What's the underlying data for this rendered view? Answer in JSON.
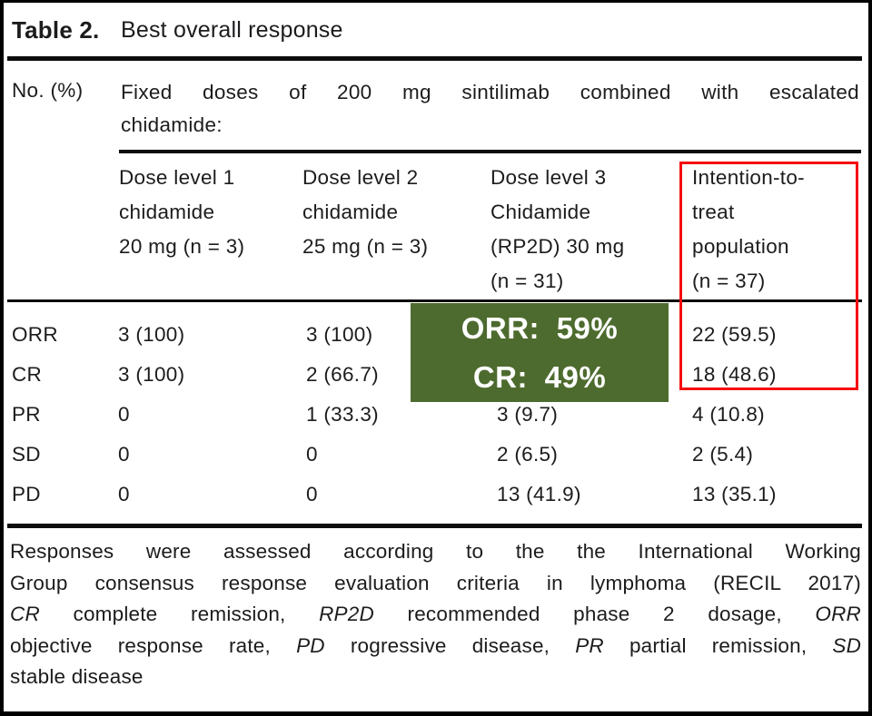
{
  "title": {
    "label": "Table 2.",
    "text": "Best overall response"
  },
  "header": {
    "row_unit": "No. (%)",
    "span_note_lines": [
      "Fixed doses of 200 mg sintilimab combined with escalated",
      "chidamide:"
    ],
    "columns": [
      {
        "id": "dose-level-1",
        "lines": [
          "Dose level 1",
          "chidamide",
          "20 mg (n = 3)"
        ]
      },
      {
        "id": "dose-level-2",
        "lines": [
          "Dose level 2",
          "chidamide",
          "25 mg (n = 3)"
        ]
      },
      {
        "id": "dose-level-3",
        "lines": [
          "Dose level 3",
          "Chidamide",
          "(RP2D) 30 mg",
          "(n = 31)"
        ]
      },
      {
        "id": "intention-to-treat",
        "lines": [
          "Intention-to-",
          "treat",
          "population",
          "(n = 37)"
        ],
        "highlighted": true
      }
    ]
  },
  "rows": [
    {
      "label": "ORR",
      "values": [
        "3 (100)",
        "3 (100)",
        "",
        "22 (59.5)"
      ]
    },
    {
      "label": "CR",
      "values": [
        "3 (100)",
        "2 (66.7)",
        "",
        "18 (48.6)"
      ]
    },
    {
      "label": "PR",
      "values": [
        "0",
        "1 (33.3)",
        "3 (9.7)",
        "4 (10.8)"
      ]
    },
    {
      "label": "SD",
      "values": [
        "0",
        "0",
        "2 (6.5)",
        "2 (5.4)"
      ]
    },
    {
      "label": "PD",
      "values": [
        "0",
        "0",
        "13 (41.9)",
        "13 (35.1)"
      ]
    }
  ],
  "overlay": {
    "green_box": {
      "line1": "ORR: 59%",
      "line2": "CR: 49%",
      "background_color": "#4d6b2e",
      "text_color": "#ffffff"
    },
    "red_box": {
      "border_color": "#f50d0d"
    }
  },
  "footnotes": {
    "lines": [
      {
        "justify": true,
        "segments": [
          {
            "text": "Responses were assessed according to the the International Working",
            "italic": false
          }
        ]
      },
      {
        "justify": true,
        "segments": [
          {
            "text": "Group consensus response evaluation criteria in lymphoma (RECIL 2017)",
            "italic": false
          }
        ]
      },
      {
        "justify": true,
        "segments": [
          {
            "text": "CR",
            "italic": true
          },
          {
            "text": " complete remission, ",
            "italic": false
          },
          {
            "text": "RP2D",
            "italic": true
          },
          {
            "text": " recommended phase 2 dosage, ",
            "italic": false
          },
          {
            "text": "ORR",
            "italic": true
          }
        ]
      },
      {
        "justify": true,
        "segments": [
          {
            "text": "objective response rate, ",
            "italic": false
          },
          {
            "text": "PD",
            "italic": true
          },
          {
            "text": " rogressive disease, ",
            "italic": false
          },
          {
            "text": "PR",
            "italic": true
          },
          {
            "text": " partial remission, ",
            "italic": false
          },
          {
            "text": "SD",
            "italic": true
          }
        ]
      },
      {
        "justify": false,
        "segments": [
          {
            "text": "stable disease",
            "italic": false
          }
        ]
      }
    ]
  }
}
